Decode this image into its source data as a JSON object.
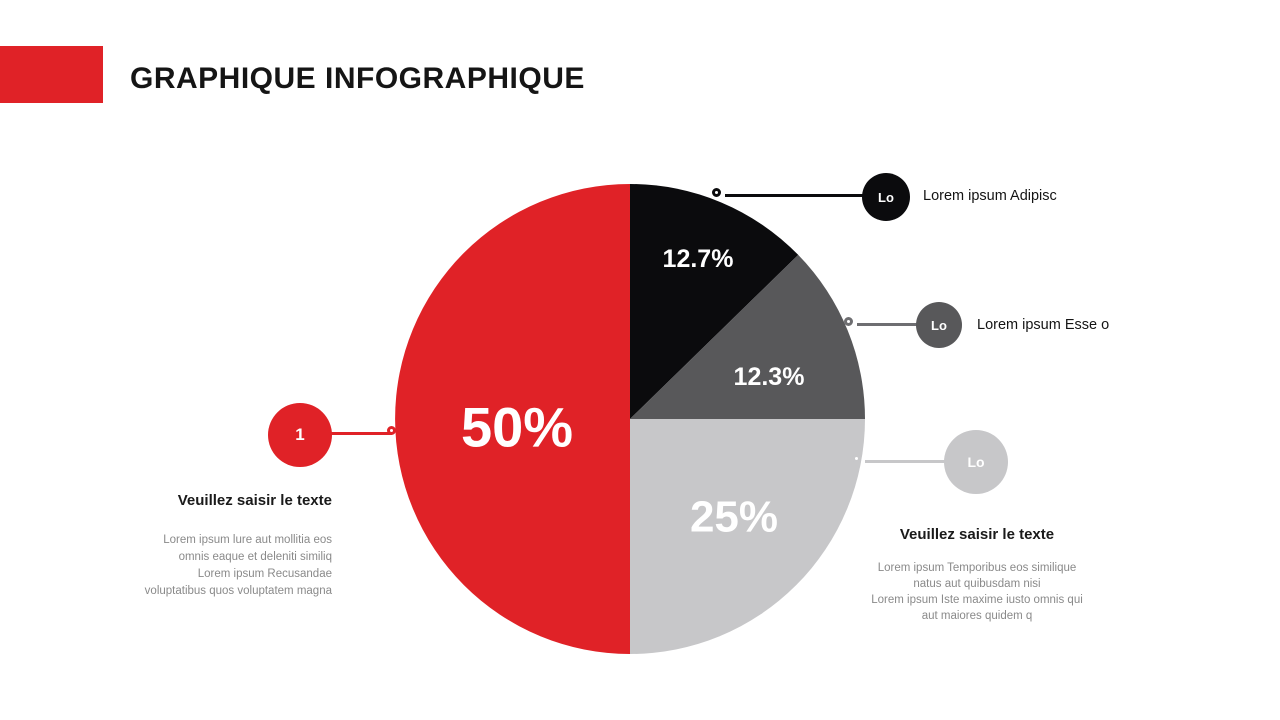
{
  "title": "GRAPHIQUE INFOGRAPHIQUE",
  "chart_data": {
    "type": "pie",
    "title": "GRAPHIQUE INFOGRAPHIQUE",
    "start_angle_deg": 0,
    "direction": "clockwise",
    "legend_position": "callouts",
    "slices": [
      {
        "label": "12.7%",
        "value": 12.7,
        "color": "#0b0b0d",
        "legend": "Lorem ipsum Adipisc"
      },
      {
        "label": "12.3%",
        "value": 12.3,
        "color": "#58585a",
        "legend": "Lorem ipsum Esse o"
      },
      {
        "label": "25%",
        "value": 25,
        "color": "#c7c7c9",
        "legend": "Veuillez saisir le texte"
      },
      {
        "label": "50%",
        "value": 50,
        "color": "#e02227",
        "legend": "Veuillez saisir le texte"
      }
    ]
  },
  "callouts": {
    "left": {
      "badge": "1",
      "heading": "Veuillez saisir le texte",
      "body_lines": [
        "Lorem ipsum lure aut mollitia eos",
        "omnis eaque et deleniti similiq",
        "Lorem ipsum Recusandae",
        "voluptatibus quos voluptatem magna"
      ]
    },
    "top_right": {
      "badge": "Lo",
      "label": "Lorem ipsum Adipisc"
    },
    "mid_right": {
      "badge": "Lo",
      "label": "Lorem ipsum Esse o"
    },
    "bottom_right": {
      "badge": "Lo",
      "heading": "Veuillez saisir le texte",
      "body_lines": [
        "Lorem ipsum Temporibus eos similique",
        "natus aut quibusdam nisi",
        "Lorem ipsum Iste maxime iusto omnis qui",
        "aut maiores quidem q"
      ]
    }
  },
  "colors": {
    "accent_red": "#e02227",
    "slice_black": "#0b0b0d",
    "slice_dark_gray": "#58585a",
    "slice_light_gray": "#c7c7c9",
    "body_text": "#8a8a8a"
  }
}
